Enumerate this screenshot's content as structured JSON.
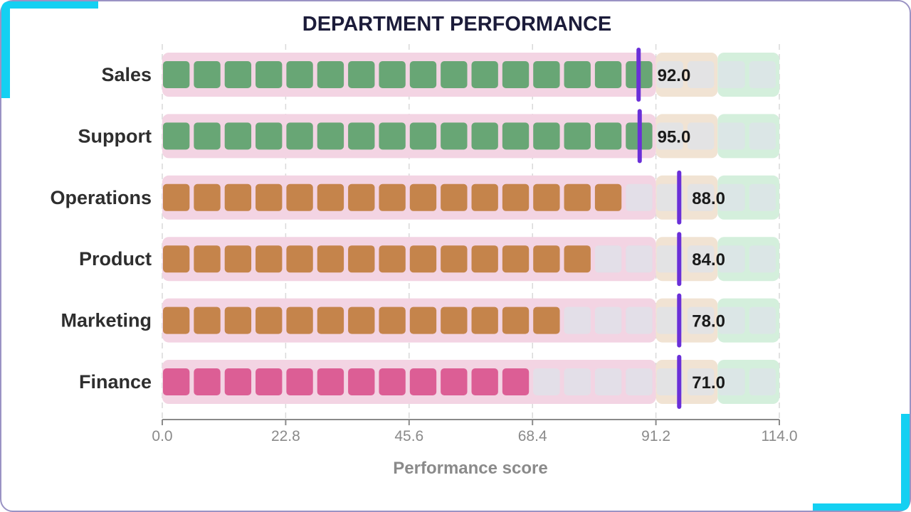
{
  "chart_data": {
    "type": "bar",
    "subtype": "bullet-waffle",
    "title": "DEPARTMENT PERFORMANCE",
    "xlabel": "Performance score",
    "ylabel": "",
    "xlim": [
      0,
      114
    ],
    "ticks": [
      "0.0",
      "22.8",
      "45.6",
      "68.4",
      "91.2",
      "114.0"
    ],
    "tick_values": [
      0,
      22.8,
      45.6,
      68.4,
      91.2,
      114
    ],
    "units_per_cell": 5.7,
    "bands": [
      {
        "from": 0,
        "to": 91.2,
        "color": "#f3d4e3"
      },
      {
        "from": 91.2,
        "to": 102.6,
        "color": "#f1e3d3"
      },
      {
        "from": 102.6,
        "to": 114,
        "color": "#d4efdc"
      }
    ],
    "empty_cell_color": "#dde3ea",
    "categories": [
      "Sales",
      "Support",
      "Operations",
      "Product",
      "Marketing",
      "Finance"
    ],
    "values": [
      92.0,
      95.0,
      88.0,
      84.0,
      78.0,
      71.0
    ],
    "value_labels": [
      "92.0",
      "95.0",
      "88.0",
      "84.0",
      "78.0",
      "71.0"
    ],
    "targets": [
      88.0,
      88.2,
      95.5,
      95.5,
      95.5,
      95.5
    ],
    "bar_colors": [
      "#68a675",
      "#68a675",
      "#c5844b",
      "#c5844b",
      "#c5844b",
      "#dc5e95"
    ],
    "accent_cell_color": "#5fa668",
    "target_color": "#6a2fd8",
    "grid": true,
    "legend": "none"
  }
}
